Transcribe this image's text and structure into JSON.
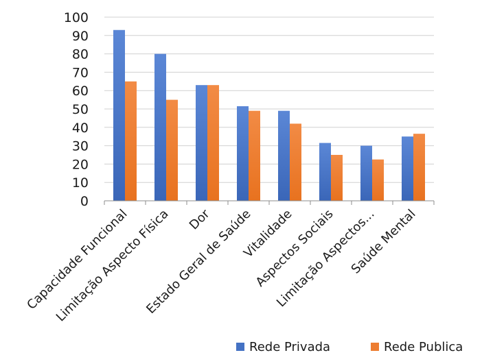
{
  "chart_data": {
    "type": "bar",
    "categories": [
      "Capacidade Funcional",
      "Limitação Aspecto Física",
      "Dor",
      "Estado Geral de Saúde",
      "Vitalidade",
      "Aspectos Sociais",
      "Limitação Aspectos...",
      "Saúde Mental"
    ],
    "series": [
      {
        "name": "Rede Privada",
        "values": [
          93,
          80,
          63,
          51.5,
          49,
          31.5,
          30,
          35
        ]
      },
      {
        "name": "Rede Publica",
        "values": [
          65,
          55,
          63,
          49,
          42,
          25,
          22.5,
          36.5
        ]
      }
    ],
    "colors": [
      "#4472c4",
      "#ed7d31"
    ],
    "ylim": [
      0,
      100
    ],
    "yticks": [
      0,
      10,
      20,
      30,
      40,
      50,
      60,
      70,
      80,
      90,
      100
    ],
    "grid": true,
    "legend_position": "bottom-right",
    "title": "",
    "xlabel": "",
    "ylabel": ""
  }
}
